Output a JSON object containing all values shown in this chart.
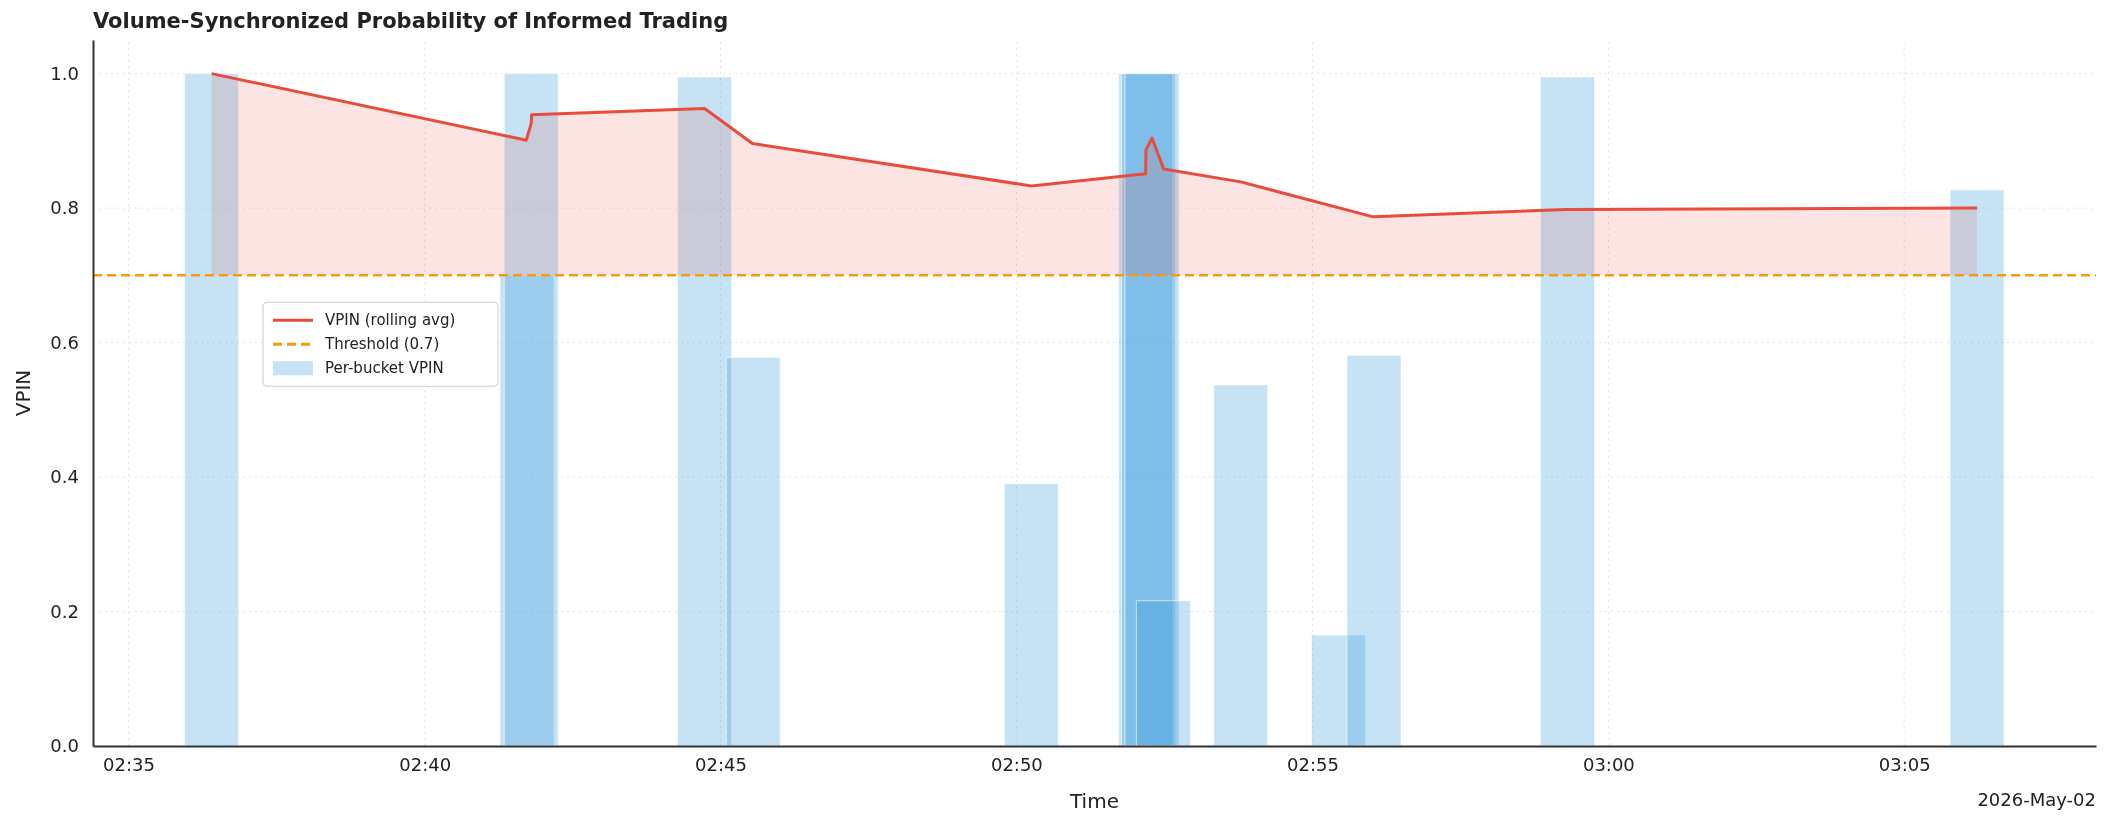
{
  "chart_data": {
    "type": "bar",
    "title": "Volume-Synchronized Probability of Informed Trading",
    "xlabel": "Time",
    "ylabel": "VPIN",
    "annotations": [
      "2026-May-02"
    ],
    "xlim": [
      2.5733,
      3.1373
    ],
    "xticks": [
      {
        "value": 2.5833,
        "label": "02:35"
      },
      {
        "value": 2.6667,
        "label": "02:40"
      },
      {
        "value": 2.75,
        "label": "02:45"
      },
      {
        "value": 2.8333,
        "label": "02:50"
      },
      {
        "value": 2.9167,
        "label": "02:55"
      },
      {
        "value": 3.0,
        "label": "03:00"
      },
      {
        "value": 3.0833,
        "label": "03:05"
      }
    ],
    "ylim": [
      0,
      1.05
    ],
    "yticks": [
      {
        "value": 0,
        "label": "0.0"
      },
      0.2,
      0.4,
      0.6,
      0.8,
      {
        "value": 1,
        "label": "1.0"
      }
    ],
    "series": [
      {
        "type": "line",
        "name": "VPIN (rolling avg)",
        "color": "#e74c3c",
        "x": [
          2.6067,
          2.6953,
          2.6967,
          2.6968,
          2.7455,
          2.759,
          2.8375,
          2.8697,
          2.8698,
          2.8715,
          2.8748,
          2.8965,
          2.9338,
          2.9883,
          3.1038
        ],
        "values": [
          1.0,
          0.901,
          0.926,
          0.939,
          0.948,
          0.896,
          0.833,
          0.851,
          0.887,
          0.904,
          0.858,
          0.839,
          0.787,
          0.798,
          0.8
        ],
        "lower": [
          0.7,
          0.7,
          0.7,
          0.7,
          0.7,
          0.7,
          0.7,
          0.7,
          0.7,
          0.7,
          0.7,
          0.7,
          0.7,
          0.7,
          0.7
        ],
        "upper": [
          1.0,
          0.901,
          0.926,
          0.939,
          0.948,
          0.896,
          0.833,
          0.851,
          0.887,
          0.904,
          0.858,
          0.839,
          0.787,
          0.798,
          0.8
        ]
      },
      {
        "name": "Per-bucket VPIN",
        "color": "#3498db",
        "x": [
          2.6067,
          2.6955,
          2.6967,
          2.7455,
          2.7592,
          2.8375,
          2.8697,
          2.8705,
          2.8715,
          2.8747,
          2.8965,
          2.924,
          2.934,
          2.9885,
          3.1038
        ],
        "values": [
          1.0,
          0.7,
          1.0,
          0.995,
          0.578,
          0.39,
          1.0,
          1.0,
          1.0,
          0.216,
          0.537,
          0.165,
          0.581,
          0.995,
          0.827
        ]
      }
    ],
    "ref_lines": [
      {
        "axis": "y",
        "value": 0.7,
        "label": "Threshold (0.7)",
        "color": "#f39c12",
        "line_style": "dashed"
      }
    ],
    "grid": true,
    "legend": "left"
  }
}
